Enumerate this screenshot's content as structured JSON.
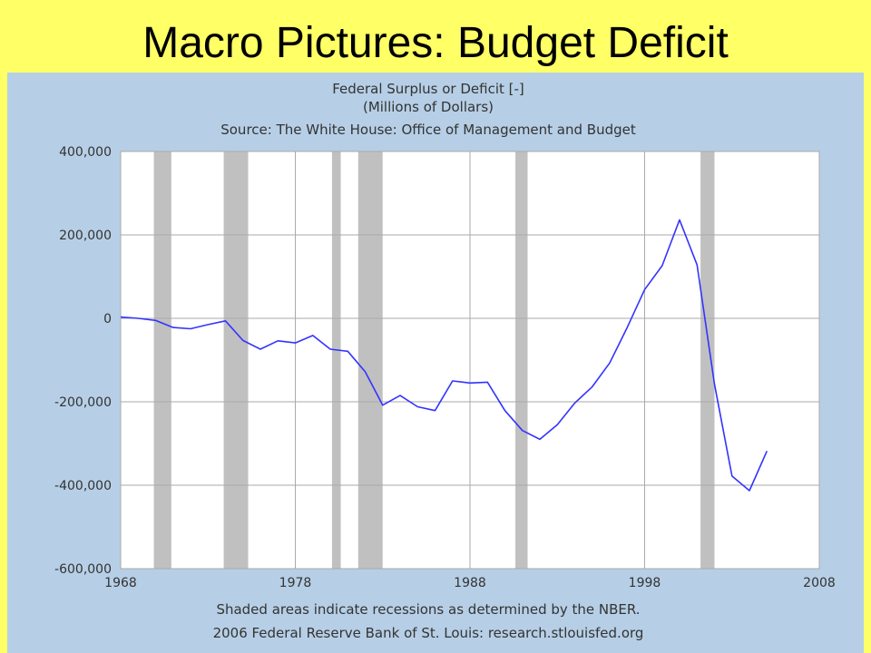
{
  "slide": {
    "title": "Macro Pictures: Budget Deficit",
    "background_color": "#ffff66",
    "panel_color": "#b6cfe6"
  },
  "chart_data": {
    "type": "line",
    "title_lines": [
      "Federal Surplus or Deficit [-]",
      "(Millions of Dollars)",
      "Source: The White House: Office of Management and Budget"
    ],
    "footer_lines": [
      "Shaded areas indicate recessions as determined by the NBER.",
      "2006 Federal Reserve Bank of St. Louis: research.stlouisfed.org"
    ],
    "xlabel": "",
    "ylabel": "",
    "xlim": [
      1968,
      2008
    ],
    "ylim": [
      -600000,
      400000
    ],
    "x_ticks": [
      1968,
      1978,
      1988,
      1998,
      2008
    ],
    "x_tick_labels": [
      "1968",
      "1978",
      "1988",
      "1998",
      "2008"
    ],
    "y_ticks": [
      400000,
      200000,
      0,
      -200000,
      -400000,
      -600000
    ],
    "y_tick_labels": [
      "400,000",
      "200,000",
      "0",
      "-200,000",
      "-400,000",
      "-600,000"
    ],
    "grid": true,
    "line_color": "#3333ff",
    "recession_color": "#c0c0c0",
    "recessions": [
      [
        1969.9,
        1970.9
      ],
      [
        1973.9,
        1975.3
      ],
      [
        1980.1,
        1980.6
      ],
      [
        1981.6,
        1983.0
      ],
      [
        1990.6,
        1991.3
      ],
      [
        2001.2,
        2002.0
      ]
    ],
    "series": [
      {
        "x": [
          1968,
          1969,
          1970,
          1971,
          1972,
          1973,
          1974,
          1975,
          1976,
          1977,
          1978,
          1979,
          1980,
          1981,
          1982,
          1983,
          1984,
          1985,
          1986,
          1987,
          1988,
          1989,
          1990,
          1991,
          1992,
          1993,
          1994,
          1995,
          1996,
          1997,
          1998,
          1999,
          2000,
          2001,
          2002,
          2003,
          2004,
          2005
        ],
        "y": [
          3000,
          0,
          -5000,
          -22000,
          -25000,
          -15000,
          -6000,
          -53000,
          -74000,
          -54000,
          -59000,
          -41000,
          -74000,
          -79000,
          -128000,
          -208000,
          -185000,
          -212000,
          -221000,
          -150000,
          -155000,
          -153000,
          -221000,
          -269000,
          -290000,
          -255000,
          -203000,
          -164000,
          -107000,
          -22000,
          69000,
          126000,
          236000,
          128000,
          -158000,
          -378000,
          -413000,
          -318000
        ]
      }
    ]
  }
}
